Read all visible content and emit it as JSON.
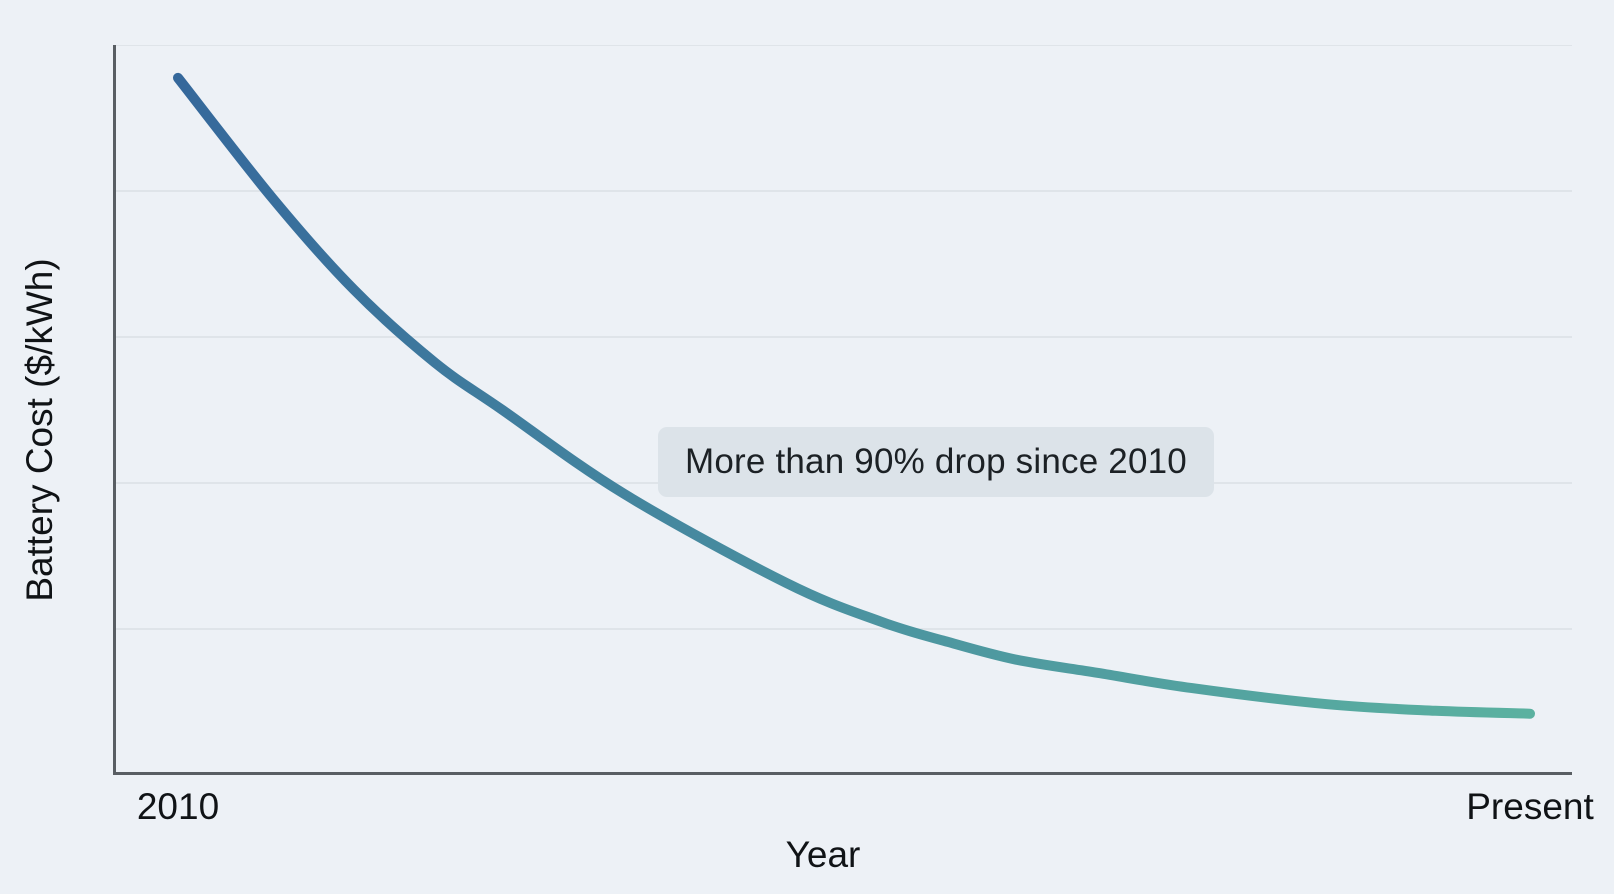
{
  "figure": {
    "background_color": "#edf1f6",
    "text_color": "#141619"
  },
  "chart_data": {
    "type": "line",
    "title": "",
    "xlabel": "Year",
    "ylabel": "Battery Cost ($/kWh)",
    "x_ticks": [
      {
        "label": "2010",
        "position": 0
      },
      {
        "label": "Present",
        "position": 1
      }
    ],
    "y_tick_labels_visible": false,
    "ylim": [
      0,
      1000
    ],
    "y_gridline_step": 200,
    "grid": "horizontal",
    "legend_position": "none",
    "axis_color": "#595e63",
    "gridline_color": "#dfe4e9",
    "annotation": {
      "text": "More than 90% drop since 2010",
      "background_color": "#dce3e9"
    },
    "series": [
      {
        "name": "battery-cost",
        "gradient": [
          "#35689b",
          "#4b93a0",
          "#5bb1a0"
        ],
        "stroke_width": 10,
        "points": [
          {
            "x": 0.0,
            "y": 955
          },
          {
            "x": 0.07,
            "y": 790
          },
          {
            "x": 0.13,
            "y": 665
          },
          {
            "x": 0.19,
            "y": 565
          },
          {
            "x": 0.24,
            "y": 500
          },
          {
            "x": 0.33,
            "y": 385
          },
          {
            "x": 0.45,
            "y": 263
          },
          {
            "x": 0.52,
            "y": 210
          },
          {
            "x": 0.57,
            "y": 182
          },
          {
            "x": 0.62,
            "y": 158
          },
          {
            "x": 0.68,
            "y": 140
          },
          {
            "x": 0.75,
            "y": 119
          },
          {
            "x": 0.85,
            "y": 97
          },
          {
            "x": 0.93,
            "y": 88
          },
          {
            "x": 1.0,
            "y": 84
          }
        ]
      }
    ]
  }
}
